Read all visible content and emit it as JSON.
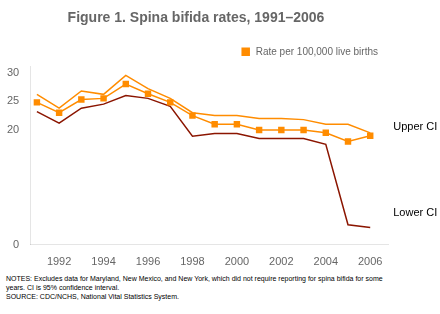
{
  "chart_data": {
    "type": "line",
    "title": "Figure 1. Spina bifida rates, 1991–2006",
    "x": [
      1991,
      1992,
      1993,
      1994,
      1995,
      1996,
      1997,
      1998,
      1999,
      2000,
      2001,
      2002,
      2003,
      2004,
      2005,
      2006
    ],
    "series": [
      {
        "color": "#FF8C00",
        "values": [
          26.2,
          23.8,
          26.8,
          26.2,
          29.5,
          27.2,
          25.5,
          23.0,
          22.5,
          22.5,
          22.0,
          22.0,
          21.8,
          21.0,
          21.0,
          19.5
        ]
      },
      {
        "name": "Rate per 100,000 live births",
        "color": "#FF8C00",
        "marker": "square",
        "values": [
          24.8,
          23.0,
          25.3,
          25.5,
          28.0,
          26.3,
          24.8,
          22.5,
          21.0,
          21.0,
          20.0,
          20.0,
          20.0,
          19.5,
          18.0,
          19.0
        ]
      },
      {
        "color": "#8B1500",
        "values": [
          23.2,
          21.2,
          23.8,
          24.5,
          26.0,
          25.5,
          24.1,
          18.9,
          19.4,
          19.4,
          18.5,
          18.5,
          18.5,
          17.5,
          3.5,
          3.0
        ]
      }
    ],
    "xlim": [
      1990.7,
      2006.8
    ],
    "xticks": [
      1992,
      1994,
      1996,
      1998,
      2000,
      2002,
      2004,
      2006
    ],
    "ylim": [
      0,
      31
    ],
    "yticks": [
      0,
      20,
      25,
      30
    ],
    "grid": false,
    "legend": "upper right",
    "annotations": [
      {
        "text": "Upper CI",
        "x": 2006.9,
        "y": 20.5
      },
      {
        "text": "Lower CI",
        "x": 2006.9,
        "y": 5.5
      }
    ],
    "notes": [
      "NOTES: Excludes data for Maryland, New Mexico, and New York, which did not require reporting for spina bifida for some",
      "years. CI is 95% confidence interval.",
      "SOURCE: CDC/NCHS, National Vital Statistics System."
    ]
  }
}
